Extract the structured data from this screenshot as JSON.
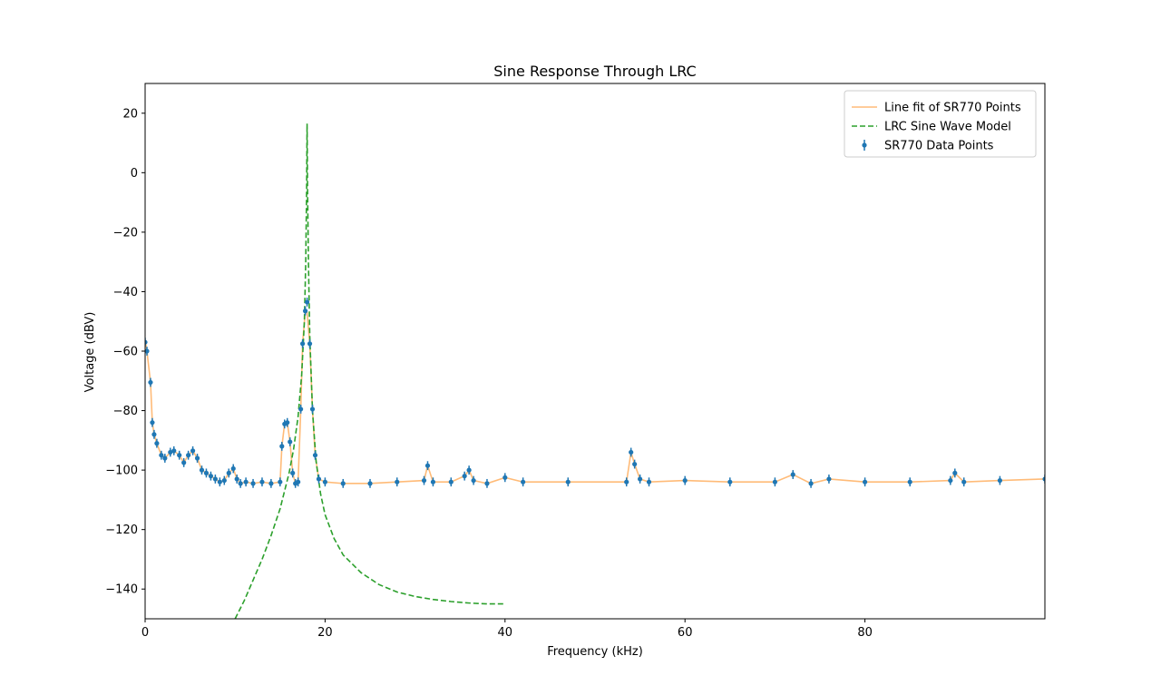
{
  "chart_data": {
    "type": "line",
    "title": "Sine Response Through LRC",
    "xlabel": "Frequency (kHz)",
    "ylabel": "Voltage (dBV)",
    "xlim": [
      0,
      100
    ],
    "ylim": [
      -150,
      30
    ],
    "xticks": [
      0,
      20,
      40,
      60,
      80
    ],
    "yticks": [
      -140,
      -120,
      -100,
      -80,
      -60,
      -40,
      -20,
      0,
      20
    ],
    "grid": false,
    "legend_position": "upper right",
    "colors": {
      "data_points": "#1f77b4",
      "line_fit": "#ffbb78",
      "model": "#2ca02c"
    },
    "series": [
      {
        "name": "Line fit of SR770 Points",
        "style": "solid-line",
        "x": [
          0,
          0.1,
          0.2,
          0.6,
          0.8,
          1.0,
          1.3,
          1.8,
          2.2,
          2.8,
          3.2,
          3.8,
          4.3,
          4.8,
          5.3,
          5.8,
          6.3,
          6.8,
          7.3,
          7.8,
          8.3,
          8.8,
          9.3,
          9.8,
          10.2,
          10.6,
          11.2,
          12.0,
          13.0,
          14.0,
          15.0,
          15.2,
          15.5,
          15.8,
          16.1,
          16.4,
          16.7,
          17.0,
          17.3,
          17.5,
          17.8,
          18.0,
          18.3,
          18.6,
          18.9,
          19.3,
          20,
          22,
          25,
          28,
          31,
          31.4,
          32,
          34,
          35.5,
          36,
          36.5,
          38,
          40,
          42,
          47,
          53.5,
          54,
          54.4,
          55,
          56,
          60,
          65,
          70,
          72,
          74,
          76,
          80,
          85,
          89.5,
          90,
          91,
          95,
          100
        ],
        "y": [
          -57,
          -58,
          -60,
          -70.5,
          -84,
          -88,
          -91,
          -95,
          -96,
          -94,
          -93.5,
          -95,
          -97.5,
          -95,
          -93.5,
          -96,
          -100,
          -101,
          -102,
          -103,
          -104,
          -103.5,
          -101,
          -99.5,
          -103,
          -104.5,
          -104,
          -104.5,
          -104,
          -104.5,
          -104,
          -92,
          -84.5,
          -84,
          -90.5,
          -101,
          -104.5,
          -104,
          -79.5,
          -57.5,
          -46.5,
          -47,
          -57.5,
          -79.5,
          -95,
          -103,
          -104,
          -104.5,
          -104.5,
          -104,
          -103.5,
          -98.5,
          -104,
          -104,
          -102,
          -100,
          -103.5,
          -104.5,
          -102.5,
          -104,
          -104,
          -104,
          -94,
          -98,
          -103,
          -104,
          -103.5,
          -104,
          -104,
          -101.5,
          -104.5,
          -103,
          -104,
          -104,
          -103.5,
          -101,
          -104,
          -103.5,
          -103
        ]
      },
      {
        "name": "LRC Sine Wave Model",
        "style": "dashed-line",
        "x": [
          10,
          11,
          12,
          13,
          14,
          15,
          16,
          16.5,
          17,
          17.4,
          17.7,
          17.85,
          17.95,
          18.0,
          18.05,
          18.15,
          18.3,
          18.6,
          19,
          19.5,
          20,
          21,
          22,
          24,
          26,
          28,
          30,
          32,
          34,
          36,
          38,
          40
        ],
        "y": [
          -150,
          -144,
          -137,
          -130,
          -122,
          -113,
          -101,
          -93,
          -82,
          -68,
          -50,
          -30,
          -5,
          16.5,
          -5,
          -30,
          -55,
          -80,
          -97,
          -108,
          -115,
          -123,
          -128.5,
          -134.5,
          -138.5,
          -141,
          -142.5,
          -143.5,
          -144.2,
          -144.7,
          -145,
          -145
        ]
      },
      {
        "name": "SR770 Data Points",
        "style": "errorbar-points",
        "x": [
          0,
          0.2,
          0.6,
          0.8,
          1.0,
          1.3,
          1.8,
          2.2,
          2.8,
          3.2,
          3.8,
          4.3,
          4.8,
          5.3,
          5.8,
          6.3,
          6.8,
          7.3,
          7.8,
          8.3,
          8.8,
          9.3,
          9.8,
          10.2,
          10.6,
          11.2,
          12.0,
          13.0,
          14.0,
          15.0,
          15.2,
          15.5,
          15.8,
          16.1,
          16.4,
          16.7,
          17.0,
          17.3,
          17.5,
          17.8,
          18.0,
          18.3,
          18.6,
          18.9,
          19.3,
          20,
          22,
          25,
          28,
          31,
          31.4,
          32,
          34,
          35.5,
          36,
          36.5,
          38,
          40,
          42,
          47,
          53.5,
          54,
          54.4,
          55,
          56,
          60,
          65,
          70,
          72,
          74,
          76,
          80,
          85,
          89.5,
          90,
          91,
          95,
          100
        ],
        "y": [
          -57,
          -60,
          -70.5,
          -84,
          -88,
          -91,
          -95,
          -96,
          -94,
          -93.5,
          -95,
          -97.5,
          -95,
          -93.5,
          -96,
          -100,
          -101,
          -102,
          -103,
          -104,
          -103.5,
          -101,
          -99.5,
          -103,
          -104.5,
          -104,
          -104.5,
          -104,
          -104.5,
          -104,
          -92,
          -84.5,
          -84,
          -90.5,
          -101,
          -104.5,
          -104,
          -79.5,
          -57.5,
          -46.5,
          -43.5,
          -57.5,
          -79.5,
          -95,
          -103,
          -104,
          -104.5,
          -104.5,
          -104,
          -103.5,
          -98.5,
          -104,
          -104,
          -102,
          -100,
          -103.5,
          -104.5,
          -102.5,
          -104,
          -104,
          -104,
          -94,
          -98,
          -103,
          -104,
          -103.5,
          -104,
          -104,
          -101.5,
          -104.5,
          -103,
          -104,
          -104,
          -103.5,
          -101,
          -104,
          -103.5,
          -103
        ],
        "yerr": 1.5
      }
    ]
  }
}
